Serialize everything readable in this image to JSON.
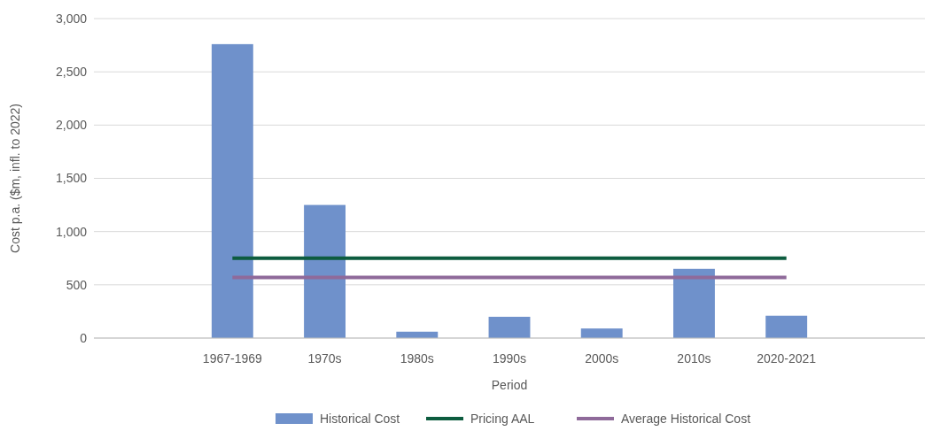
{
  "chart_data": {
    "type": "bar",
    "xlabel": "Period",
    "ylabel": "Cost p.a. ($m, infl. to 2022)",
    "categories": [
      null,
      "1967-1969",
      "1970s",
      "1980s",
      "1990s",
      "2000s",
      "2010s",
      "2020-2021",
      null
    ],
    "series": [
      {
        "name": "Historical Cost",
        "color": "#6f91cb",
        "values": [
          null,
          2760,
          1250,
          60,
          200,
          90,
          650,
          210,
          null
        ]
      },
      {
        "name": "Pricing AAL",
        "type": "line",
        "color": "#0d5c3f",
        "values": [
          null,
          750,
          750,
          750,
          750,
          750,
          750,
          750,
          null
        ]
      },
      {
        "name": "Average Historical Cost",
        "type": "line",
        "color": "#8f6a9a",
        "values": [
          null,
          570,
          570,
          570,
          570,
          570,
          570,
          570,
          null
        ]
      }
    ],
    "ylim": [
      0,
      3000
    ],
    "yticks": [
      {
        "value": 0,
        "label": "0"
      },
      {
        "value": 500,
        "label": "500"
      },
      {
        "value": 1000,
        "label": "1,000"
      },
      {
        "value": 1500,
        "label": "1,500"
      },
      {
        "value": 2000,
        "label": "2,000"
      },
      {
        "value": 2500,
        "label": "2,500"
      },
      {
        "value": 3000,
        "label": "3,000"
      }
    ],
    "grid": "y",
    "legend": "bottom",
    "marker": "none",
    "line_style": "solid"
  }
}
